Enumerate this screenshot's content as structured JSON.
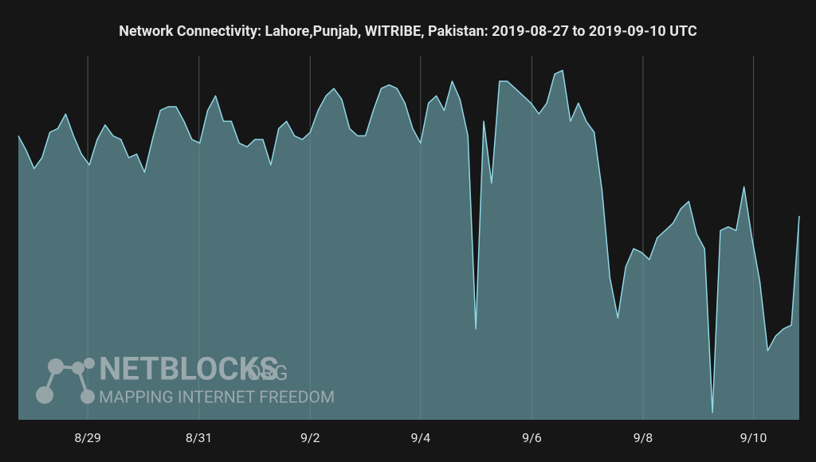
{
  "chart_data": {
    "type": "area",
    "title": "Network Connectivity: Lahore,Punjab, WITRIBE, Pakistan: 2019-08-27 to 2019-09-10 UTC",
    "watermark": {
      "brand": "NETBLOCKS",
      "suffix": ".ORG",
      "tagline": "MAPPING INTERNET FREEDOM"
    },
    "values": [
      78,
      74,
      69,
      72,
      79,
      80,
      84,
      78,
      73,
      70,
      77,
      81,
      78,
      77,
      72,
      73,
      68,
      77,
      85,
      86,
      86,
      82,
      77,
      76,
      85,
      89,
      82,
      82,
      76,
      75,
      77,
      77,
      70,
      80,
      82,
      78,
      77,
      79,
      85,
      89,
      91,
      88,
      80,
      78,
      78,
      85,
      91,
      92,
      91,
      87,
      80,
      76,
      87,
      89,
      85,
      93,
      88,
      78,
      25,
      82,
      65,
      93,
      93,
      91,
      89,
      87,
      84,
      87,
      95,
      96,
      82,
      87,
      82,
      79,
      63,
      39,
      28,
      42,
      47,
      46,
      44,
      50,
      52,
      54,
      58,
      60,
      51,
      47,
      2,
      52,
      53,
      52,
      64,
      50,
      38,
      19,
      23,
      25,
      26,
      56
    ],
    "color": "#8fd8e6",
    "fill_color": "#4e7077",
    "xlim": [
      0,
      99
    ],
    "xticks": [
      {
        "value": 8.8,
        "label": "8/29"
      },
      {
        "value": 22.9,
        "label": "8/31"
      },
      {
        "value": 37.0,
        "label": "9/2"
      },
      {
        "value": 51.0,
        "label": "9/4"
      },
      {
        "value": 65.1,
        "label": "9/6"
      },
      {
        "value": 79.2,
        "label": "9/8"
      },
      {
        "value": 93.2,
        "label": "9/10"
      }
    ],
    "ylim": [
      0,
      100
    ],
    "grid": true
  }
}
